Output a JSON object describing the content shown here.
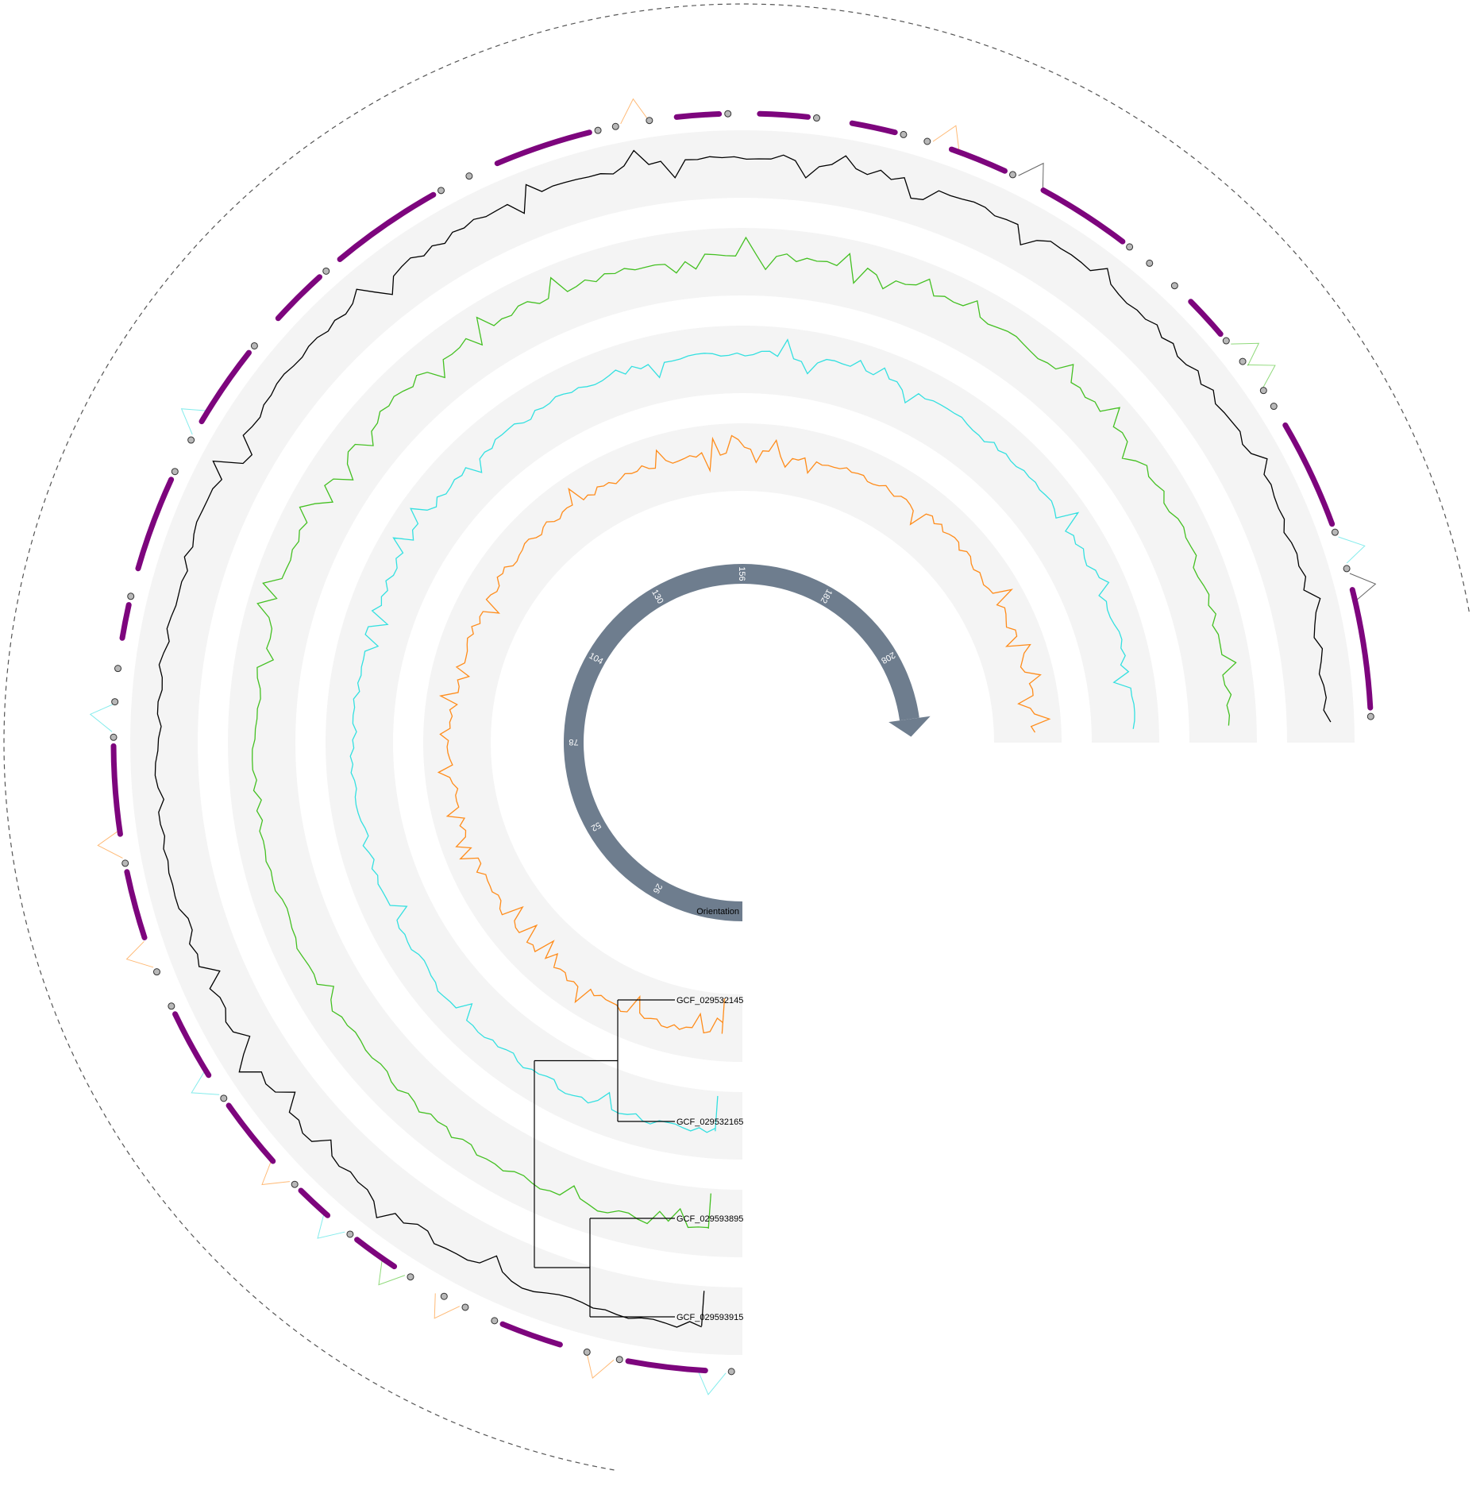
{
  "genomes": [
    {
      "id": "GCF_029532145"
    },
    {
      "id": "GCF_029532165"
    },
    {
      "id": "GCF_029593895"
    },
    {
      "id": "GCF_029593915"
    }
  ],
  "orientation": {
    "label": "Orientation",
    "ticks": [
      "26",
      "52",
      "78",
      "104",
      "130",
      "156",
      "182",
      "208"
    ],
    "color": "#6e7d8e"
  },
  "colors": {
    "track_bg": "#f4f4f4",
    "tree": "#000000",
    "node": "#b8b8b8",
    "gene_block": "#7d057d",
    "outer_dashed": "#555555",
    "tracks": [
      "#ff8c1a",
      "#33e0e0",
      "#44c022",
      "#000000"
    ]
  },
  "icons": {
    "orientation_arrow": "arrow-head-icon",
    "gene_node": "circle-node-icon"
  }
}
